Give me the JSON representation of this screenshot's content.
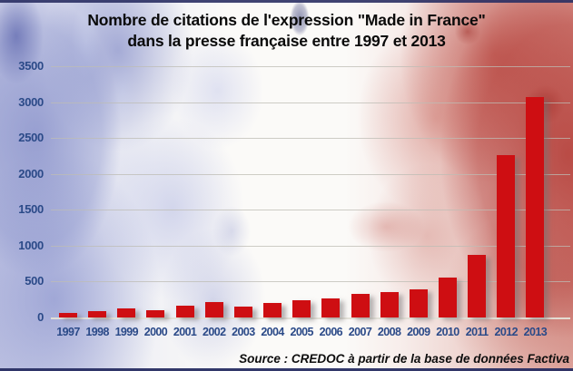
{
  "title": {
    "line1": "Nombre de citations de l'expression \"Made in France\"",
    "line2": "dans la presse française entre 1997 et 2013"
  },
  "source": "Source : CREDOC à partir de la base de données Factiva",
  "colors": {
    "bar_red": "#ce0e12",
    "axis_label_blue": "#2b4a88",
    "gridline": "#beb8b0",
    "flag_blue": "#6b76bd",
    "flag_red": "#b8463e",
    "title_text": "#000000"
  },
  "chart_data": {
    "type": "bar",
    "title": "Nombre de citations de l'expression \"Made in France\" dans la presse française entre 1997 et 2013",
    "categories": [
      "1997",
      "1998",
      "1999",
      "2000",
      "2001",
      "2002",
      "2003",
      "2004",
      "2005",
      "2006",
      "2007",
      "2008",
      "2009",
      "2010",
      "2011",
      "2012",
      "2013"
    ],
    "values": [
      65,
      85,
      130,
      100,
      160,
      215,
      150,
      200,
      240,
      270,
      330,
      360,
      390,
      550,
      870,
      2265,
      3070
    ],
    "xlabel": "",
    "ylabel": "",
    "ylim": [
      0,
      3500
    ],
    "yticks": [
      0,
      500,
      1000,
      1500,
      2000,
      2500,
      3000,
      3500
    ],
    "grid": true,
    "legend_position": "none",
    "bar_color": "#ce0e12",
    "source": "Source : CREDOC à partir de la base de données Factiva"
  }
}
